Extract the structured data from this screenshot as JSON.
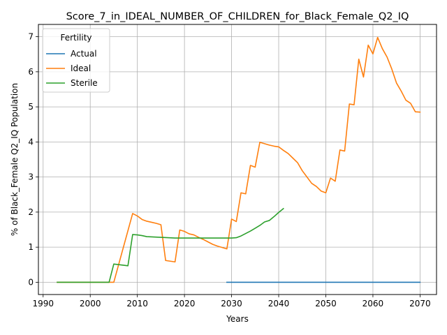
{
  "chart_data": {
    "type": "line",
    "title": "Score_7_in_IDEAL_NUMBER_OF_CHILDREN_for_Black_Female_Q2_IQ",
    "xlabel": "Years",
    "ylabel": "% of Black_Female Q2_IQ Population",
    "xlim": [
      1989,
      2073.5
    ],
    "ylim": [
      -0.35,
      7.35
    ],
    "xticks": [
      1990,
      2000,
      2010,
      2020,
      2030,
      2040,
      2050,
      2060,
      2070
    ],
    "yticks": [
      0,
      1,
      2,
      3,
      4,
      5,
      6,
      7
    ],
    "grid": true,
    "legend": {
      "title": "Fertility",
      "position": "top-left"
    },
    "series": [
      {
        "name": "Actual",
        "color": "#1f77b4",
        "x": [
          2029,
          2030,
          2035,
          2040,
          2045,
          2050,
          2055,
          2060,
          2065,
          2070
        ],
        "y": [
          0,
          0,
          0,
          0,
          0,
          0,
          0,
          0,
          0,
          0
        ]
      },
      {
        "name": "Ideal",
        "color": "#ff7f0e",
        "x": [
          1993,
          2004,
          2005,
          2009,
          2010,
          2011,
          2012,
          2013,
          2014,
          2015,
          2016,
          2017,
          2018,
          2019,
          2020,
          2021,
          2022,
          2023,
          2024,
          2025,
          2026,
          2027,
          2028,
          2029,
          2030,
          2031,
          2032,
          2033,
          2034,
          2035,
          2036,
          2037,
          2038,
          2039,
          2040,
          2041,
          2042,
          2043,
          2044,
          2045,
          2046,
          2047,
          2048,
          2049,
          2050,
          2051,
          2052,
          2053,
          2054,
          2055,
          2056,
          2057,
          2058,
          2059,
          2060,
          2061,
          2062,
          2063,
          2064,
          2065,
          2066,
          2067,
          2068,
          2069,
          2070
        ],
        "y": [
          0,
          0,
          0,
          1.96,
          1.89,
          1.79,
          1.74,
          1.71,
          1.68,
          1.64,
          0.62,
          0.6,
          0.58,
          1.49,
          1.45,
          1.38,
          1.35,
          1.28,
          1.22,
          1.15,
          1.08,
          1.03,
          0.99,
          0.95,
          1.8,
          1.73,
          2.55,
          2.52,
          3.33,
          3.28,
          3.99,
          3.95,
          3.91,
          3.88,
          3.86,
          3.76,
          3.67,
          3.54,
          3.41,
          3.18,
          3.0,
          2.82,
          2.73,
          2.6,
          2.55,
          2.97,
          2.88,
          3.77,
          3.74,
          5.08,
          5.06,
          6.36,
          5.85,
          6.76,
          6.51,
          6.98,
          6.66,
          6.42,
          6.08,
          5.68,
          5.45,
          5.19,
          5.1,
          4.86,
          4.85
        ]
      },
      {
        "name": "Sterile",
        "color": "#2ca02c",
        "x": [
          1993,
          2004,
          2005,
          2008,
          2009,
          2010,
          2011,
          2012,
          2015,
          2018,
          2020,
          2025,
          2030,
          2031,
          2032,
          2033,
          2034,
          2035,
          2036,
          2037,
          2038,
          2039,
          2040,
          2041
        ],
        "y": [
          0,
          0,
          0.52,
          0.47,
          1.36,
          1.35,
          1.33,
          1.3,
          1.28,
          1.26,
          1.26,
          1.26,
          1.26,
          1.27,
          1.32,
          1.39,
          1.46,
          1.54,
          1.62,
          1.72,
          1.76,
          1.87,
          1.99,
          2.1
        ]
      }
    ]
  }
}
